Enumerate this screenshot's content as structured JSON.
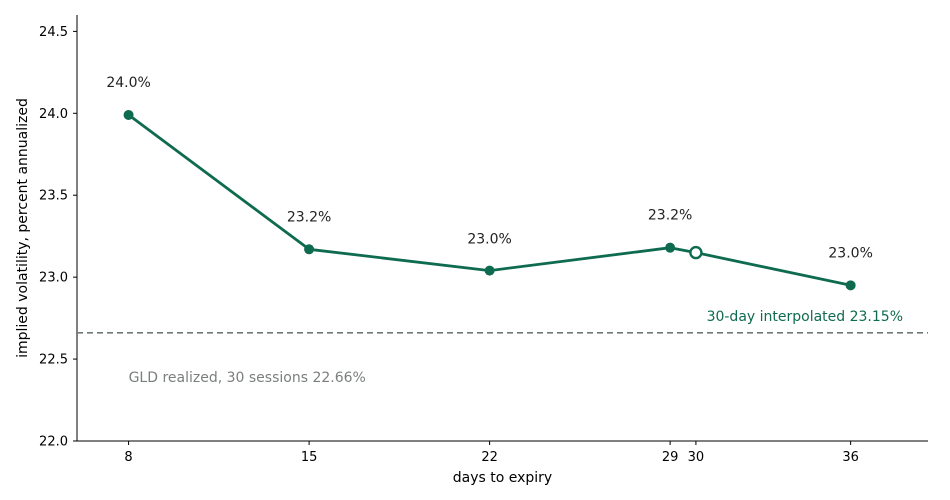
{
  "chart_data": {
    "type": "line",
    "xlabel": "days to expiry",
    "ylabel": "implied volatility, percent annualized",
    "xlim": [
      6,
      39
    ],
    "ylim": [
      22.0,
      24.6
    ],
    "xticks": [
      8,
      15,
      22,
      29,
      30,
      36
    ],
    "yticks": [
      22.0,
      22.5,
      23.0,
      23.5,
      24.0,
      24.5
    ],
    "ytick_labels": [
      "22.0",
      "22.5",
      "23.0",
      "23.5",
      "24.0",
      "24.5"
    ],
    "grid": false,
    "series": [
      {
        "x": [
          8,
          15,
          22,
          29,
          36
        ],
        "y": [
          23.99,
          23.17,
          23.04,
          23.18,
          22.95
        ],
        "labels": [
          "24.0%",
          "23.2%",
          "23.0%",
          "23.2%",
          "23.0%"
        ]
      }
    ],
    "interpolated_point": {
      "x": 30,
      "y": 23.15
    },
    "interpolated_label": "30-day interpolated  23.15%",
    "reference_line": {
      "y": 22.66,
      "label": "GLD realized, 30 sessions  22.66%"
    },
    "colors": {
      "series": "#0f6b4f",
      "reference": "#6f7a78",
      "reference_text": "#7a7f7e",
      "axis": "#000000"
    }
  }
}
